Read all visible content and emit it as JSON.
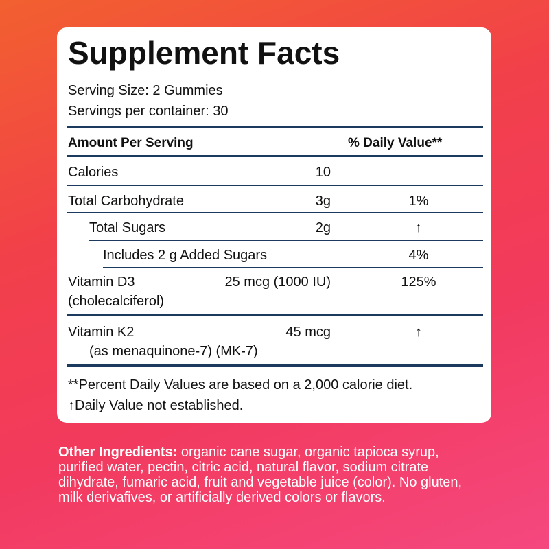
{
  "label": {
    "title": "Supplement Facts",
    "serving": [
      "Serving Size: 2 Gummies",
      "Servings per container: 30"
    ],
    "table": {
      "header": [
        "Amount Per Serving",
        "% Daily Value**"
      ],
      "rows": [
        {
          "name": "Calories",
          "amount": "10"
        },
        {
          "name": "Total Carbohydrate",
          "amount": "3g",
          "dv": "1%"
        },
        {
          "name": "Total Sugars",
          "amount": "2g",
          "dv": "↑"
        },
        {
          "name": "Includes 2 g Added Sugars",
          "dv": "4%"
        },
        {
          "name": "Vitamin D3",
          "sub": "(cholecalciferol)",
          "amount": "25 mcg (1000 IU)",
          "dv": "125%"
        },
        {
          "name": "Vitamin K2",
          "sub": "(as menaquinone-7) (MK-7)",
          "amount": "45 mcg",
          "dv": "↑"
        }
      ]
    },
    "footnotes": [
      "**Percent Daily Values are based on a 2,000 calorie diet.",
      "↑Daily Value not established."
    ]
  },
  "other_ingredients": {
    "label": "Other Ingredients:",
    "text": "organic cane sugar, organic tapioca syrup, purified water, pectin, citric acid, natural flavor, sodium citrate dihydrate, fumaric acid, fruit and vegetable juice (color). No gluten, milk derivafives, or artificially derived colors or flavors."
  }
}
